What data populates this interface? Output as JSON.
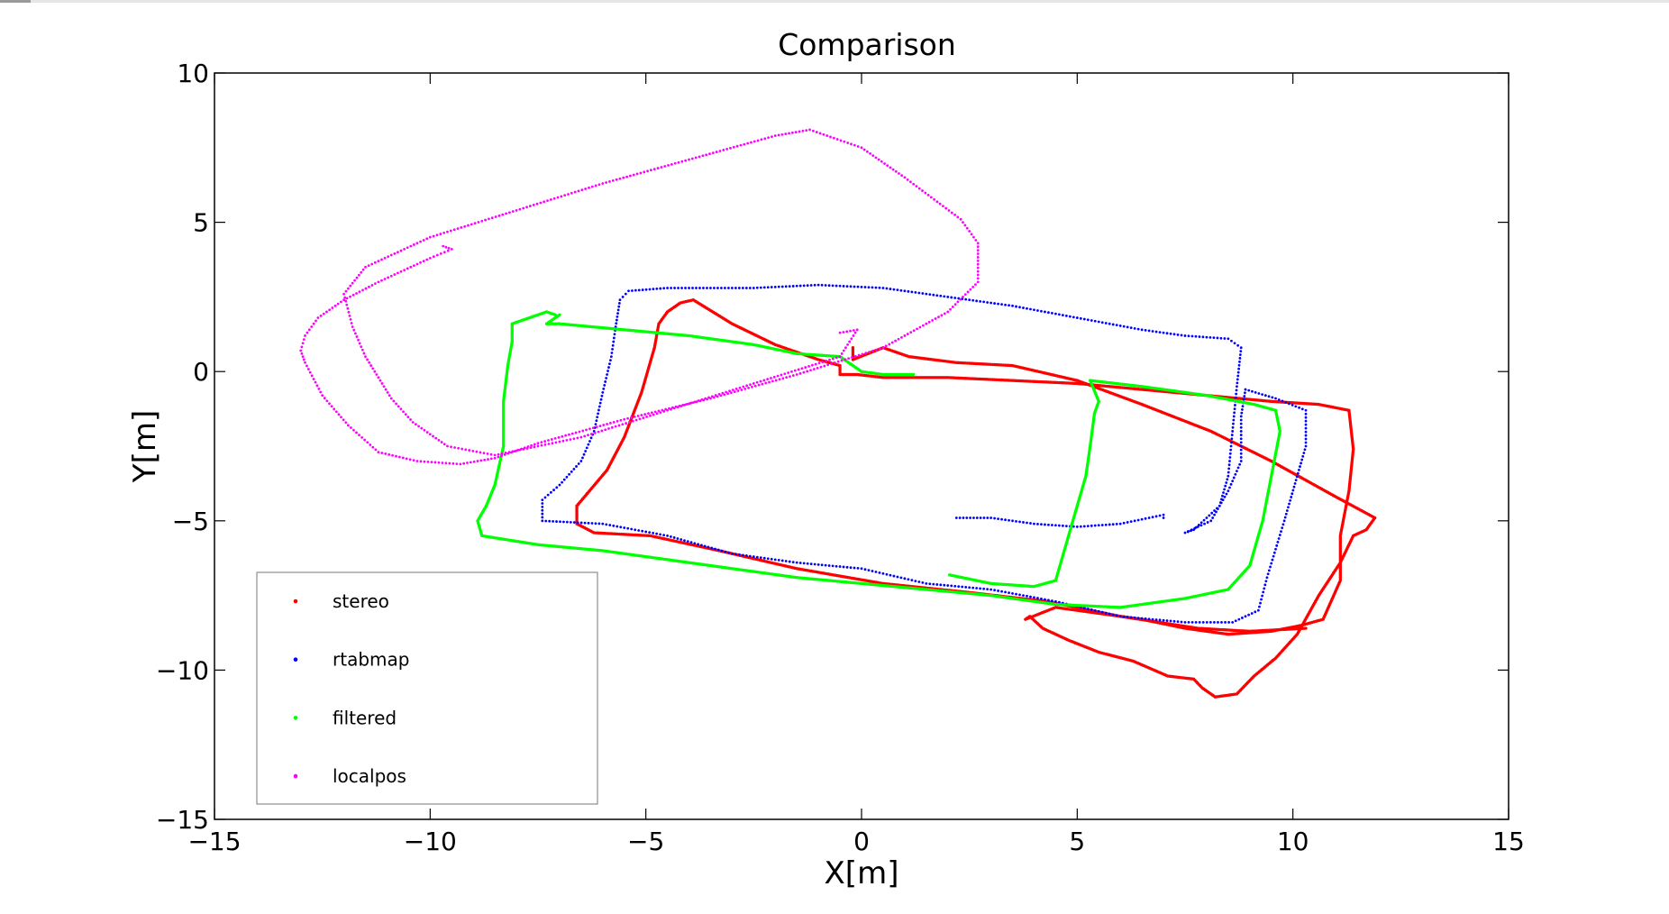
{
  "chart_data": {
    "type": "scatter",
    "title": "Comparison",
    "xlabel": "X[m]",
    "ylabel": "Y[m]",
    "xlim": [
      -15,
      15
    ],
    "ylim": [
      -15,
      10
    ],
    "xticks": [
      -15,
      -10,
      -5,
      0,
      5,
      10,
      15
    ],
    "yticks": [
      -15,
      -10,
      -5,
      0,
      5,
      10
    ],
    "grid": false,
    "legend_position": "bottom-left",
    "series": [
      {
        "name": "stereo",
        "color": "#ff0000",
        "points": [
          [
            -0.2,
            0.8
          ],
          [
            -0.2,
            0.4
          ],
          [
            0.5,
            0.8
          ],
          [
            1.1,
            0.5
          ],
          [
            2.2,
            0.3
          ],
          [
            3.5,
            0.2
          ],
          [
            5.0,
            -0.3
          ],
          [
            6.5,
            -1.1
          ],
          [
            8.1,
            -2.0
          ],
          [
            9.5,
            -3.0
          ],
          [
            11.0,
            -4.2
          ],
          [
            11.9,
            -4.9
          ],
          [
            11.7,
            -5.3
          ],
          [
            11.4,
            -5.5
          ],
          [
            11.1,
            -6.4
          ],
          [
            10.6,
            -7.5
          ],
          [
            10.1,
            -8.8
          ],
          [
            9.6,
            -9.6
          ],
          [
            9.1,
            -10.2
          ],
          [
            8.7,
            -10.8
          ],
          [
            8.2,
            -10.9
          ],
          [
            7.9,
            -10.6
          ],
          [
            7.7,
            -10.3
          ],
          [
            7.1,
            -10.2
          ],
          [
            6.3,
            -9.7
          ],
          [
            5.5,
            -9.4
          ],
          [
            4.8,
            -9.0
          ],
          [
            4.2,
            -8.6
          ],
          [
            3.9,
            -8.2
          ],
          [
            3.8,
            -8.3
          ],
          [
            4.5,
            -7.9
          ],
          [
            5.5,
            -8.1
          ],
          [
            6.5,
            -8.3
          ],
          [
            7.5,
            -8.6
          ],
          [
            8.5,
            -8.8
          ],
          [
            9.5,
            -8.7
          ],
          [
            10.2,
            -8.5
          ],
          [
            10.7,
            -8.3
          ],
          [
            11.1,
            -7.0
          ],
          [
            11.1,
            -5.5
          ],
          [
            11.3,
            -4.0
          ],
          [
            11.4,
            -2.6
          ],
          [
            11.3,
            -1.3
          ],
          [
            10.6,
            -1.1
          ],
          [
            9.5,
            -1.0
          ],
          [
            8.0,
            -0.8
          ],
          [
            6.5,
            -0.6
          ],
          [
            5.0,
            -0.4
          ],
          [
            3.5,
            -0.3
          ],
          [
            2.0,
            -0.2
          ],
          [
            0.5,
            -0.2
          ],
          [
            -0.1,
            -0.1
          ],
          [
            -0.3,
            -0.1
          ],
          [
            -0.5,
            -0.1
          ],
          [
            -0.5,
            0.2
          ],
          [
            -1.0,
            0.4
          ],
          [
            -2.0,
            0.9
          ],
          [
            -3.0,
            1.6
          ],
          [
            -3.9,
            2.4
          ],
          [
            -4.2,
            2.3
          ],
          [
            -4.5,
            2.0
          ],
          [
            -4.7,
            1.6
          ],
          [
            -4.8,
            0.8
          ],
          [
            -5.1,
            -0.7
          ],
          [
            -5.5,
            -2.2
          ],
          [
            -5.9,
            -3.3
          ],
          [
            -6.6,
            -4.5
          ],
          [
            -6.6,
            -5.1
          ],
          [
            -6.2,
            -5.4
          ],
          [
            -4.9,
            -5.5
          ],
          [
            -3.3,
            -6.0
          ],
          [
            -1.5,
            -6.6
          ],
          [
            0.5,
            -7.1
          ],
          [
            2.5,
            -7.4
          ],
          [
            4.3,
            -7.7
          ],
          [
            6.0,
            -8.2
          ],
          [
            7.8,
            -8.6
          ],
          [
            9.0,
            -8.7
          ],
          [
            10.3,
            -8.6
          ]
        ]
      },
      {
        "name": "rtabmap",
        "color": "#0000ff",
        "points": [
          [
            -5.7,
            1.5
          ],
          [
            -5.6,
            2.4
          ],
          [
            -5.4,
            2.7
          ],
          [
            -4.5,
            2.8
          ],
          [
            -2.5,
            2.8
          ],
          [
            -1.0,
            2.9
          ],
          [
            0.5,
            2.8
          ],
          [
            2.0,
            2.5
          ],
          [
            3.5,
            2.2
          ],
          [
            5.0,
            1.8
          ],
          [
            6.5,
            1.4
          ],
          [
            7.5,
            1.2
          ],
          [
            8.5,
            1.1
          ],
          [
            8.8,
            0.8
          ],
          [
            8.7,
            -0.5
          ],
          [
            8.6,
            -2.0
          ],
          [
            8.5,
            -3.5
          ],
          [
            8.3,
            -4.5
          ],
          [
            7.7,
            -5.3
          ],
          [
            7.5,
            -5.4
          ],
          [
            8.1,
            -5.0
          ],
          [
            8.5,
            -4.0
          ],
          [
            8.8,
            -3.0
          ],
          [
            8.8,
            -1.5
          ],
          [
            8.9,
            -0.6
          ],
          [
            9.6,
            -0.9
          ],
          [
            10.3,
            -1.3
          ],
          [
            10.3,
            -2.5
          ],
          [
            9.8,
            -5.0
          ],
          [
            9.4,
            -6.9
          ],
          [
            9.2,
            -8.0
          ],
          [
            8.6,
            -8.4
          ],
          [
            7.5,
            -8.4
          ],
          [
            6.0,
            -8.2
          ],
          [
            4.5,
            -7.7
          ],
          [
            3.0,
            -7.3
          ],
          [
            1.5,
            -7.1
          ],
          [
            0.0,
            -6.6
          ],
          [
            -1.5,
            -6.4
          ],
          [
            -3.0,
            -6.1
          ],
          [
            -4.5,
            -5.5
          ],
          [
            -6.0,
            -5.1
          ],
          [
            -7.4,
            -5.0
          ],
          [
            -7.4,
            -4.3
          ],
          [
            -7.0,
            -3.8
          ],
          [
            -6.5,
            -3.0
          ],
          [
            -6.2,
            -2.0
          ],
          [
            -6.0,
            -0.7
          ],
          [
            -5.8,
            0.5
          ],
          [
            -5.7,
            1.5
          ],
          [
            2.2,
            -4.9
          ],
          [
            3.0,
            -4.9
          ],
          [
            4.0,
            -5.1
          ],
          [
            5.0,
            -5.2
          ],
          [
            6.0,
            -5.1
          ],
          [
            7.0,
            -4.8
          ],
          [
            7.0,
            -4.9
          ]
        ]
      },
      {
        "name": "filtered",
        "color": "#00ff00",
        "points": [
          [
            -7.1,
            1.9
          ],
          [
            -7.3,
            2.0
          ],
          [
            -7.7,
            1.8
          ],
          [
            -8.1,
            1.6
          ],
          [
            -8.1,
            1.0
          ],
          [
            -8.2,
            0.2
          ],
          [
            -8.3,
            -1.0
          ],
          [
            -8.3,
            -2.5
          ],
          [
            -8.5,
            -3.8
          ],
          [
            -8.7,
            -4.5
          ],
          [
            -8.9,
            -5.0
          ],
          [
            -8.8,
            -5.5
          ],
          [
            -7.5,
            -5.8
          ],
          [
            -6.0,
            -6.0
          ],
          [
            -4.5,
            -6.3
          ],
          [
            -3.0,
            -6.6
          ],
          [
            -1.5,
            -6.9
          ],
          [
            0.0,
            -7.1
          ],
          [
            1.5,
            -7.3
          ],
          [
            3.0,
            -7.5
          ],
          [
            4.5,
            -7.8
          ],
          [
            6.0,
            -7.9
          ],
          [
            7.5,
            -7.6
          ],
          [
            8.5,
            -7.3
          ],
          [
            9.0,
            -6.5
          ],
          [
            9.3,
            -5.0
          ],
          [
            9.5,
            -3.5
          ],
          [
            9.7,
            -2.0
          ],
          [
            9.6,
            -1.3
          ],
          [
            9.1,
            -1.1
          ],
          [
            8.0,
            -0.8
          ],
          [
            6.5,
            -0.5
          ],
          [
            5.3,
            -0.3
          ],
          [
            5.5,
            -1.0
          ],
          [
            5.4,
            -1.4
          ],
          [
            5.3,
            -2.5
          ],
          [
            5.2,
            -3.5
          ],
          [
            5.0,
            -4.5
          ],
          [
            4.8,
            -5.5
          ],
          [
            4.6,
            -6.5
          ],
          [
            4.5,
            -7.0
          ],
          [
            4.0,
            -7.2
          ],
          [
            3.0,
            -7.1
          ],
          [
            2.0,
            -6.8
          ],
          [
            1.2,
            -0.1
          ],
          [
            0.5,
            -0.1
          ],
          [
            0.0,
            0.0
          ],
          [
            -0.5,
            0.5
          ],
          [
            -1.5,
            0.6
          ],
          [
            -2.5,
            0.9
          ],
          [
            -4.0,
            1.2
          ],
          [
            -5.5,
            1.4
          ],
          [
            -7.0,
            1.6
          ],
          [
            -7.3,
            1.6
          ],
          [
            -7.0,
            1.9
          ]
        ]
      },
      {
        "name": "localpos",
        "color": "#ff00ff",
        "points": [
          [
            -9.7,
            4.2
          ],
          [
            -9.5,
            4.1
          ],
          [
            -10.0,
            3.8
          ],
          [
            -10.6,
            3.4
          ],
          [
            -11.2,
            3.0
          ],
          [
            -12.0,
            2.4
          ],
          [
            -12.6,
            1.8
          ],
          [
            -12.9,
            1.2
          ],
          [
            -13.0,
            0.7
          ],
          [
            -12.9,
            0.3
          ],
          [
            -12.5,
            -0.8
          ],
          [
            -11.9,
            -1.8
          ],
          [
            -11.2,
            -2.7
          ],
          [
            -10.3,
            -3.0
          ],
          [
            -9.3,
            -3.1
          ],
          [
            -8.5,
            -2.9
          ],
          [
            -7.5,
            -2.4
          ],
          [
            -5.5,
            -1.6
          ],
          [
            -3.5,
            -0.9
          ],
          [
            -1.5,
            -0.1
          ],
          [
            0.5,
            0.8
          ],
          [
            2.0,
            2.0
          ],
          [
            2.7,
            3.0
          ],
          [
            2.7,
            4.3
          ],
          [
            2.3,
            5.1
          ],
          [
            1.0,
            6.5
          ],
          [
            0.0,
            7.5
          ],
          [
            -1.2,
            8.1
          ],
          [
            -2.0,
            7.9
          ],
          [
            -4.0,
            7.1
          ],
          [
            -6.0,
            6.3
          ],
          [
            -8.0,
            5.4
          ],
          [
            -10.0,
            4.5
          ],
          [
            -11.5,
            3.5
          ],
          [
            -12.0,
            2.6
          ],
          [
            -11.8,
            1.5
          ],
          [
            -11.5,
            0.5
          ],
          [
            -10.9,
            -0.9
          ],
          [
            -10.4,
            -1.7
          ],
          [
            -9.6,
            -2.5
          ],
          [
            -8.5,
            -2.8
          ],
          [
            -6.5,
            -2.2
          ],
          [
            -4.5,
            -1.3
          ],
          [
            -2.5,
            -0.4
          ],
          [
            -0.5,
            0.5
          ],
          [
            -0.1,
            1.4
          ],
          [
            -0.5,
            1.3
          ]
        ]
      }
    ]
  }
}
